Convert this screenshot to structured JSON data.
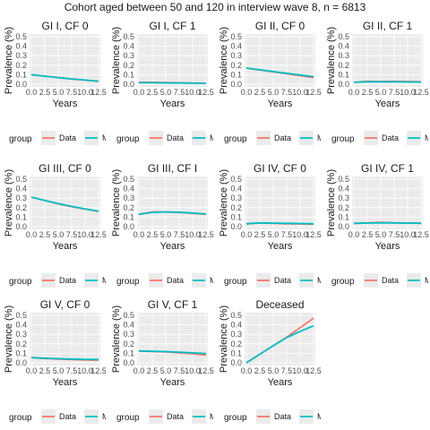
{
  "title": "Cohort aged between 50 and 120 in interview wave 8, n = 6813",
  "colors": {
    "data": "#F8766D",
    "model": "#00BFC4",
    "panel_bg": "#EBEBEB",
    "grid": "#FFFFFF"
  },
  "chart_data": [
    {
      "type": "line",
      "title": "GI I, CF 0",
      "xlabel": "Years",
      "ylabel": "Prevalence (%)",
      "x": [
        0,
        2.5,
        5,
        7.5,
        10,
        12.5
      ],
      "xtick_labels": [
        "0.0",
        "2.5",
        "5.0",
        "7.5",
        "10.0",
        "12.5"
      ],
      "ylim": [
        0,
        0.5
      ],
      "ytick_labels": [
        "0.0",
        "0.1",
        "0.2",
        "0.3",
        "0.4",
        "0.5"
      ],
      "legend_title": "group",
      "series": [
        {
          "name": "Data",
          "values": [
            0.1,
            0.085,
            0.07,
            0.055,
            0.042,
            0.03
          ]
        },
        {
          "name": "Model",
          "values": [
            0.1,
            0.085,
            0.07,
            0.056,
            0.043,
            0.032
          ]
        }
      ]
    },
    {
      "type": "line",
      "title": "GI I, CF 1",
      "xlabel": "Years",
      "ylabel": "Prevalence (%)",
      "x": [
        0,
        2.5,
        5,
        7.5,
        10,
        12.5
      ],
      "xtick_labels": [
        "0.0",
        "2.5",
        "5.0",
        "7.5",
        "10.0",
        "12.5"
      ],
      "ylim": [
        0,
        0.5
      ],
      "ytick_labels": [
        "0.0",
        "0.1",
        "0.2",
        "0.3",
        "0.4",
        "0.5"
      ],
      "legend_title": "group",
      "series": [
        {
          "name": "Data",
          "values": [
            0.02,
            0.02,
            0.018,
            0.015,
            0.012,
            0.01
          ]
        },
        {
          "name": "Model",
          "values": [
            0.015,
            0.015,
            0.013,
            0.012,
            0.01,
            0.009
          ]
        }
      ]
    },
    {
      "type": "line",
      "title": "GI II, CF 0",
      "xlabel": "Years",
      "ylabel": "Prevalence (%)",
      "x": [
        0,
        2.5,
        5,
        7.5,
        10,
        12.5
      ],
      "xtick_labels": [
        "0.0",
        "2.5",
        "5.0",
        "7.5",
        "10.0",
        "12.5"
      ],
      "ylim": [
        0,
        0.5
      ],
      "ytick_labels": [
        "0.0",
        "0.1",
        "0.2",
        "0.3",
        "0.4",
        "0.5"
      ],
      "legend_title": "group",
      "series": [
        {
          "name": "Data",
          "values": [
            0.17,
            0.15,
            0.13,
            0.11,
            0.09,
            0.07
          ]
        },
        {
          "name": "Model",
          "values": [
            0.17,
            0.152,
            0.133,
            0.115,
            0.097,
            0.08
          ]
        }
      ]
    },
    {
      "type": "line",
      "title": "GI II, CF 1",
      "xlabel": "Years",
      "ylabel": "Prevalence (%)",
      "x": [
        0,
        2.5,
        5,
        7.5,
        10,
        12.5
      ],
      "xtick_labels": [
        "0.0",
        "2.5",
        "5.0",
        "7.5",
        "10.0",
        "12.5"
      ],
      "ylim": [
        0,
        0.5
      ],
      "ytick_labels": [
        "0.0",
        "0.1",
        "0.2",
        "0.3",
        "0.4",
        "0.5"
      ],
      "legend_title": "group",
      "series": [
        {
          "name": "Data",
          "values": [
            0.02,
            0.03,
            0.028,
            0.03,
            0.028,
            0.025
          ]
        },
        {
          "name": "Model",
          "values": [
            0.02,
            0.025,
            0.025,
            0.025,
            0.024,
            0.023
          ]
        }
      ]
    },
    {
      "type": "line",
      "title": "GI III, CF 0",
      "xlabel": "Years",
      "ylabel": "Prevalence (%)",
      "x": [
        0,
        2.5,
        5,
        7.5,
        10,
        12.5
      ],
      "xtick_labels": [
        "0.0",
        "2.5",
        "5.0",
        "7.5",
        "10.0",
        "12.5"
      ],
      "ylim": [
        0,
        0.5
      ],
      "ytick_labels": [
        "0.0",
        "0.1",
        "0.2",
        "0.3",
        "0.4",
        "0.5"
      ],
      "legend_title": "group",
      "series": [
        {
          "name": "Data",
          "values": [
            0.31,
            0.275,
            0.24,
            0.21,
            0.185,
            0.16
          ]
        },
        {
          "name": "Model",
          "values": [
            0.31,
            0.276,
            0.243,
            0.213,
            0.187,
            0.162
          ]
        }
      ]
    },
    {
      "type": "line",
      "title": "GI III, CF I",
      "xlabel": "Years",
      "ylabel": "Prevalence (%)",
      "x": [
        0,
        2.5,
        5,
        7.5,
        10,
        12.5
      ],
      "xtick_labels": [
        "0.0",
        "2.5",
        "5.0",
        "7.5",
        "10.0",
        "12.5"
      ],
      "ylim": [
        0,
        0.5
      ],
      "ytick_labels": [
        "0.0",
        "0.1",
        "0.2",
        "0.3",
        "0.4",
        "0.5"
      ],
      "legend_title": "group",
      "series": [
        {
          "name": "Data",
          "values": [
            0.13,
            0.155,
            0.155,
            0.15,
            0.14,
            0.13
          ]
        },
        {
          "name": "Model",
          "values": [
            0.13,
            0.15,
            0.155,
            0.152,
            0.143,
            0.133
          ]
        }
      ]
    },
    {
      "type": "line",
      "title": "GI IV, CF 0",
      "xlabel": "Years",
      "ylabel": "Prevalence (%)",
      "x": [
        0,
        2.5,
        5,
        7.5,
        10,
        12.5
      ],
      "xtick_labels": [
        "0.0",
        "2.5",
        "5.0",
        "7.5",
        "10.0",
        "12.5"
      ],
      "ylim": [
        0,
        0.5
      ],
      "ytick_labels": [
        "0.0",
        "0.1",
        "0.2",
        "0.3",
        "0.4",
        "0.5"
      ],
      "legend_title": "group",
      "series": [
        {
          "name": "Data",
          "values": [
            0.03,
            0.04,
            0.035,
            0.03,
            0.028,
            0.025
          ]
        },
        {
          "name": "Model",
          "values": [
            0.03,
            0.04,
            0.038,
            0.035,
            0.033,
            0.03
          ]
        }
      ]
    },
    {
      "type": "line",
      "title": "GI IV, CF 1",
      "xlabel": "Years",
      "ylabel": "Prevalence (%)",
      "x": [
        0,
        2.5,
        5,
        7.5,
        10,
        12.5
      ],
      "xtick_labels": [
        "0.0",
        "2.5",
        "5.0",
        "7.5",
        "10.0",
        "12.5"
      ],
      "ylim": [
        0,
        0.5
      ],
      "ytick_labels": [
        "0.0",
        "0.1",
        "0.2",
        "0.3",
        "0.4",
        "0.5"
      ],
      "legend_title": "group",
      "series": [
        {
          "name": "Data",
          "values": [
            0.035,
            0.04,
            0.045,
            0.04,
            0.038,
            0.036
          ]
        },
        {
          "name": "Model",
          "values": [
            0.035,
            0.038,
            0.04,
            0.04,
            0.038,
            0.036
          ]
        }
      ]
    },
    {
      "type": "line",
      "title": "GI V, CF 0",
      "xlabel": "Years",
      "ylabel": "Prevalence (%)",
      "x": [
        0,
        2.5,
        5,
        7.5,
        10,
        12.5
      ],
      "xtick_labels": [
        "0.0",
        "2.5",
        "5.0",
        "7.5",
        "10.0",
        "12.5"
      ],
      "ylim": [
        0,
        0.5
      ],
      "ytick_labels": [
        "0.0",
        "0.1",
        "0.2",
        "0.3",
        "0.4",
        "0.5"
      ],
      "legend_title": "group",
      "series": [
        {
          "name": "Data",
          "values": [
            0.055,
            0.045,
            0.04,
            0.035,
            0.03,
            0.028
          ]
        },
        {
          "name": "Model",
          "values": [
            0.055,
            0.048,
            0.043,
            0.04,
            0.037,
            0.035
          ]
        }
      ]
    },
    {
      "type": "line",
      "title": "GI V, CF 1",
      "xlabel": "Years",
      "ylabel": "Prevalence (%)",
      "x": [
        0,
        2.5,
        5,
        7.5,
        10,
        12.5
      ],
      "xtick_labels": [
        "0.0",
        "2.5",
        "5.0",
        "7.5",
        "10.0",
        "12.5"
      ],
      "ylim": [
        0,
        0.5
      ],
      "ytick_labels": [
        "0.0",
        "0.1",
        "0.2",
        "0.3",
        "0.4",
        "0.5"
      ],
      "legend_title": "group",
      "series": [
        {
          "name": "Data",
          "values": [
            0.125,
            0.12,
            0.115,
            0.105,
            0.095,
            0.08
          ]
        },
        {
          "name": "Model",
          "values": [
            0.125,
            0.122,
            0.118,
            0.112,
            0.105,
            0.098
          ]
        }
      ]
    },
    {
      "type": "line",
      "title": "Deceased",
      "xlabel": "Years",
      "ylabel": "Prevalence (%)",
      "x": [
        0,
        2.5,
        5,
        7.5,
        10,
        12.5
      ],
      "xtick_labels": [
        "0.0",
        "2.5",
        "5.0",
        "7.5",
        "10.0",
        "12.5"
      ],
      "ylim": [
        0,
        0.5
      ],
      "ytick_labels": [
        "0.0",
        "0.1",
        "0.2",
        "0.3",
        "0.4",
        "0.5"
      ],
      "legend_title": "group",
      "series": [
        {
          "name": "Data",
          "values": [
            0,
            0.09,
            0.18,
            0.27,
            0.37,
            0.47
          ]
        },
        {
          "name": "Model",
          "values": [
            0,
            0.09,
            0.18,
            0.265,
            0.33,
            0.39
          ]
        }
      ]
    }
  ]
}
